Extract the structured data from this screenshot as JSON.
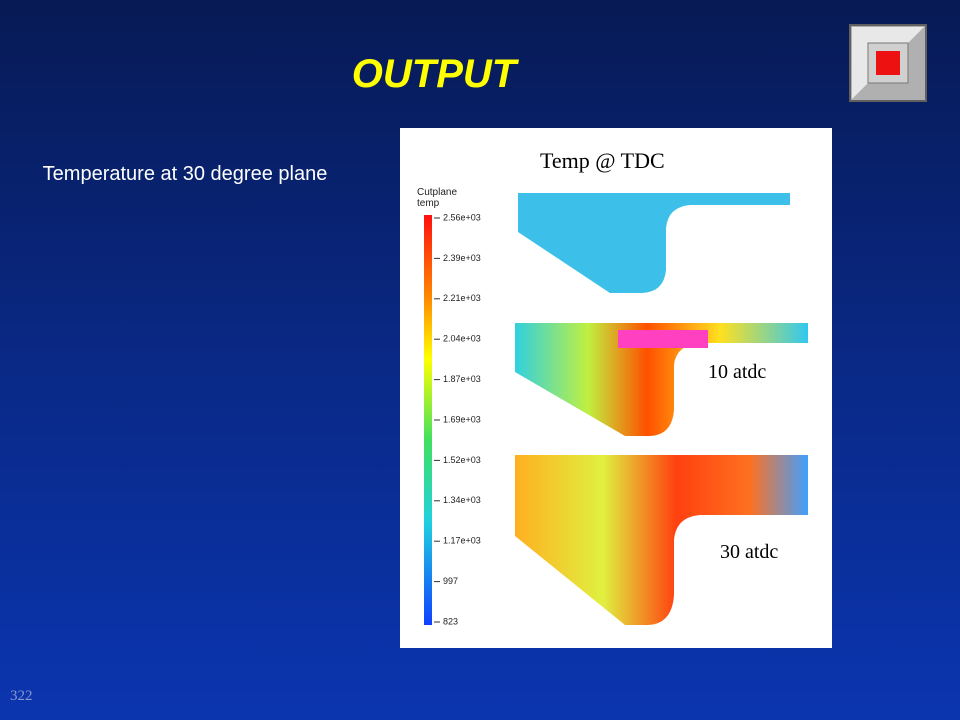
{
  "header": {
    "title": "OUTPUT"
  },
  "caption": "Temperature at 30 degree plane",
  "page_number": "322",
  "figure": {
    "title": "Temp @ TDC",
    "legend_title": "Cutplane temp",
    "legend_labels": [
      "2.56e+03",
      "2.39e+03",
      "2.21e+03",
      "2.04e+03",
      "1.87e+03",
      "1.69e+03",
      "1.52e+03",
      "1.34e+03",
      "1.17e+03",
      "997",
      "823"
    ],
    "panel_labels": [
      "10 atdc",
      "30 atdc"
    ]
  }
}
